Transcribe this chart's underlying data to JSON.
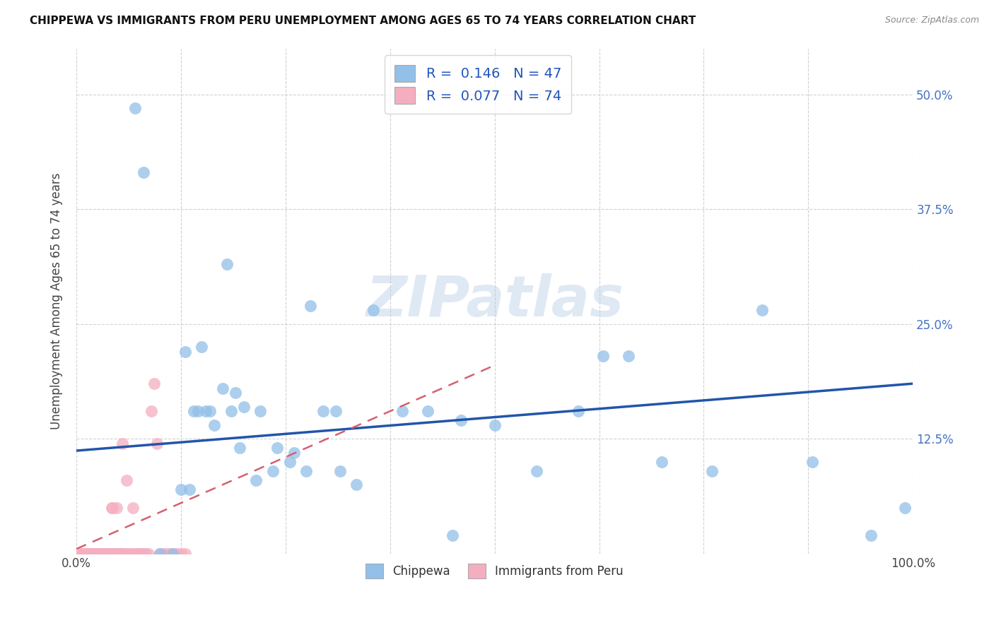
{
  "title": "CHIPPEWA VS IMMIGRANTS FROM PERU UNEMPLOYMENT AMONG AGES 65 TO 74 YEARS CORRELATION CHART",
  "source": "Source: ZipAtlas.com",
  "ylabel": "Unemployment Among Ages 65 to 74 years",
  "xlim": [
    0,
    1.0
  ],
  "ylim": [
    0,
    0.55
  ],
  "blue_color": "#92c0e8",
  "pink_color": "#f5aec0",
  "trendline_blue": "#2255aa",
  "trendline_pink": "#d46070",
  "watermark": "ZIPatlas",
  "blue_trend_start": 0.112,
  "blue_trend_end": 0.185,
  "pink_trend_x0": 0.0,
  "pink_trend_y0": 0.005,
  "pink_trend_x1": 0.5,
  "pink_trend_y1": 0.205,
  "chippewa_x": [
    0.07,
    0.08,
    0.18,
    0.28,
    0.15,
    0.13,
    0.14,
    0.155,
    0.16,
    0.175,
    0.19,
    0.2,
    0.22,
    0.24,
    0.26,
    0.31,
    0.355,
    0.42,
    0.46,
    0.5,
    0.55,
    0.6,
    0.63,
    0.66,
    0.7,
    0.76,
    0.82,
    0.88,
    0.95,
    0.99,
    0.1,
    0.115,
    0.125,
    0.135,
    0.145,
    0.165,
    0.185,
    0.195,
    0.215,
    0.235,
    0.255,
    0.275,
    0.295,
    0.315,
    0.335,
    0.39,
    0.45
  ],
  "chippewa_y": [
    0.485,
    0.415,
    0.315,
    0.27,
    0.225,
    0.22,
    0.155,
    0.155,
    0.155,
    0.18,
    0.175,
    0.16,
    0.155,
    0.115,
    0.11,
    0.155,
    0.265,
    0.155,
    0.145,
    0.14,
    0.09,
    0.155,
    0.215,
    0.215,
    0.1,
    0.09,
    0.265,
    0.1,
    0.02,
    0.05,
    0.0,
    0.0,
    0.07,
    0.07,
    0.155,
    0.14,
    0.155,
    0.115,
    0.08,
    0.09,
    0.1,
    0.09,
    0.155,
    0.09,
    0.075,
    0.155,
    0.02
  ],
  "peru_x": [
    0.005,
    0.007,
    0.008,
    0.01,
    0.011,
    0.013,
    0.014,
    0.015,
    0.016,
    0.017,
    0.018,
    0.019,
    0.02,
    0.021,
    0.022,
    0.023,
    0.024,
    0.025,
    0.026,
    0.027,
    0.028,
    0.029,
    0.03,
    0.031,
    0.032,
    0.033,
    0.034,
    0.035,
    0.036,
    0.037,
    0.038,
    0.039,
    0.04,
    0.041,
    0.042,
    0.043,
    0.044,
    0.045,
    0.046,
    0.047,
    0.048,
    0.049,
    0.05,
    0.051,
    0.052,
    0.053,
    0.054,
    0.055,
    0.056,
    0.058,
    0.06,
    0.062,
    0.064,
    0.066,
    0.068,
    0.07,
    0.072,
    0.074,
    0.076,
    0.078,
    0.08,
    0.083,
    0.086,
    0.09,
    0.093,
    0.096,
    0.1,
    0.104,
    0.108,
    0.112,
    0.116,
    0.12,
    0.125,
    0.13
  ],
  "peru_y": [
    0.0,
    0.0,
    0.0,
    0.0,
    0.0,
    0.0,
    0.0,
    0.0,
    0.0,
    0.0,
    0.0,
    0.0,
    0.0,
    0.0,
    0.0,
    0.0,
    0.0,
    0.0,
    0.0,
    0.0,
    0.0,
    0.0,
    0.0,
    0.0,
    0.0,
    0.0,
    0.0,
    0.0,
    0.0,
    0.0,
    0.0,
    0.0,
    0.0,
    0.0,
    0.05,
    0.05,
    0.0,
    0.0,
    0.0,
    0.0,
    0.05,
    0.0,
    0.0,
    0.0,
    0.0,
    0.0,
    0.0,
    0.12,
    0.0,
    0.0,
    0.08,
    0.0,
    0.0,
    0.0,
    0.05,
    0.0,
    0.0,
    0.0,
    0.0,
    0.0,
    0.0,
    0.0,
    0.0,
    0.155,
    0.185,
    0.12,
    0.0,
    0.0,
    0.0,
    0.0,
    0.0,
    0.0,
    0.0,
    0.0
  ]
}
